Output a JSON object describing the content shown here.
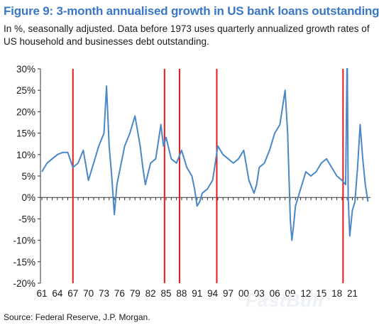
{
  "title": "Figure 9: 3-month annualised growth in US bank loans outstanding",
  "subtitle": "In %, seasonally adjusted. Data before 1973 uses quarterly annualized growth rates of US household and businesses debt outstanding.",
  "source": "Source: Federal Reserve, J.P. Morgan.",
  "watermark": "FastBull",
  "colors": {
    "series": "#4a88c6",
    "recession": "#e41a1c",
    "title": "#3a77c8"
  },
  "chart_data": {
    "type": "line",
    "title": "Figure 9: 3-month annualised growth in US bank loans outstanding",
    "ylim": [
      -20,
      30
    ],
    "xlim": [
      1961,
      2024.5
    ],
    "y_ticks": [
      30,
      25,
      20,
      15,
      10,
      5,
      0,
      -5,
      -10,
      -15,
      -20
    ],
    "y_tick_labels": [
      "30%",
      "25%",
      "20%",
      "15%",
      "10%",
      "5%",
      "0%",
      "-5%",
      "-10%",
      "-15%",
      "-20%"
    ],
    "x_ticks": [
      1961,
      1964,
      1967,
      1970,
      1973,
      1976,
      1979,
      1982,
      1985,
      1988,
      1991,
      1994,
      1997,
      2000,
      2003,
      2006,
      2009,
      2012,
      2015,
      2018,
      2021
    ],
    "x_tick_labels": [
      "61",
      "64",
      "67",
      "70",
      "73",
      "76",
      "79",
      "82",
      "85",
      "88",
      "91",
      "94",
      "97",
      "00",
      "03",
      "06",
      "09",
      "12",
      "15",
      "18",
      "21"
    ],
    "grid": false,
    "recession_lines": [
      1967.0,
      1984.7,
      1987.6,
      1994.8,
      2019.2
    ],
    "series": [
      {
        "x": [
          1961,
          1962,
          1963,
          1964,
          1965,
          1966,
          1967,
          1968,
          1969,
          1970,
          1971,
          1972,
          1973,
          1973.5,
          1974,
          1974.5,
          1975,
          1975.5,
          1976,
          1976.5,
          1977,
          1978,
          1979,
          1980,
          1980.5,
          1981,
          1982,
          1983,
          1984,
          1984.5,
          1985,
          1986,
          1987,
          1988,
          1989,
          1990,
          1990.5,
          1991,
          1991.5,
          1992,
          1993,
          1994,
          1994.5,
          1995,
          1996,
          1997,
          1998,
          1999,
          2000,
          2001,
          2002,
          2002.5,
          2003,
          2004,
          2005,
          2006,
          2007,
          2008,
          2008.5,
          2009,
          2009.3,
          2009.6,
          2010,
          2011,
          2012,
          2013,
          2014,
          2015,
          2016,
          2017,
          2018,
          2019,
          2019.7,
          2020,
          2020.2,
          2020.5,
          2021,
          2021.5,
          2022,
          2022.5,
          2023,
          2023.5,
          2024
        ],
        "values": [
          6,
          8,
          9,
          10,
          10.5,
          10.5,
          7,
          8,
          11,
          4,
          8,
          12,
          15,
          26,
          12,
          5,
          -4,
          3,
          6,
          9,
          12,
          15,
          19,
          12,
          7,
          3,
          8,
          9,
          17,
          12,
          14,
          9,
          8,
          11,
          7,
          5,
          2,
          -2,
          -1,
          1,
          2,
          4,
          8,
          12,
          10,
          9,
          8,
          9,
          11,
          4,
          1,
          3,
          7,
          8,
          11,
          15,
          17,
          25,
          15,
          -5,
          -10,
          -7,
          -2,
          2,
          6,
          5,
          6,
          8,
          9,
          7,
          5,
          4,
          3,
          35,
          0,
          -9,
          -3,
          -1,
          7,
          17,
          9,
          3,
          -1
        ]
      }
    ]
  }
}
